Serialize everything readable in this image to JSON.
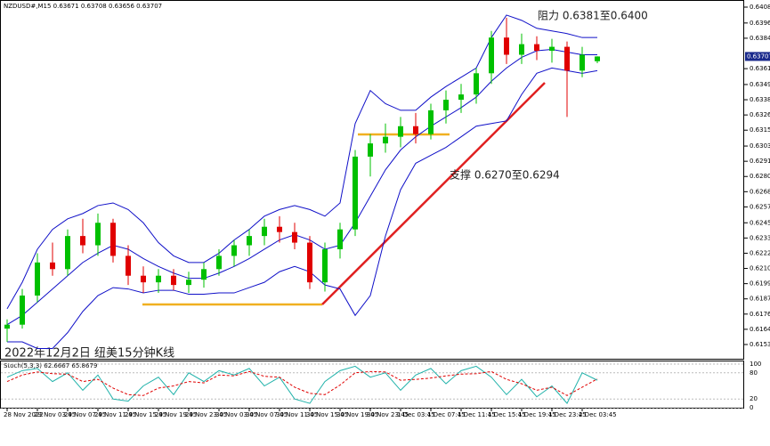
{
  "chart_data": [
    {
      "type": "candlestick",
      "title": "NZDUSD#,M15 0.63671 0.63708 0.63656 0.63707",
      "categories": [
        "28 Nov 2022",
        null,
        "29 Nov 03:45",
        null,
        "29 Nov 07:45",
        null,
        "29 Nov 11:45",
        null,
        "29 Nov 15:45",
        null,
        "29 Nov 19:45",
        null,
        "29 Nov 23:45",
        null,
        "30 Nov 03:45",
        null,
        "30 Nov 07:45",
        null,
        "30 Nov 11:45",
        null,
        "30 Nov 15:45",
        null,
        "30 Nov 19:45",
        null,
        "30 Nov 23:45",
        null,
        "1 Dec 03:45",
        null,
        "1 Dec 07:45",
        null,
        "1 Dec 11:45",
        null,
        "1 Dec 15:45",
        null,
        "1 Dec 19:45",
        null,
        "1 Dec 23:45",
        null,
        "2 Dec 03:45",
        null
      ],
      "open": [
        0.6165,
        0.6168,
        0.619,
        0.6215,
        0.621,
        0.6235,
        0.6228,
        0.6245,
        0.622,
        0.6205,
        0.62,
        0.6205,
        0.6198,
        0.6202,
        0.621,
        0.622,
        0.6228,
        0.6235,
        0.6242,
        0.6238,
        0.623,
        0.62,
        0.6225,
        0.624,
        0.6295,
        0.6305,
        0.631,
        0.6318,
        0.6312,
        0.633,
        0.6338,
        0.6342,
        0.6358,
        0.6385,
        0.6372,
        0.638,
        0.6375,
        0.6378,
        0.636,
        0.63671
      ],
      "high": [
        0.6172,
        0.6195,
        0.6222,
        0.623,
        0.624,
        0.6248,
        0.6252,
        0.6248,
        0.6228,
        0.6212,
        0.621,
        0.621,
        0.6208,
        0.6215,
        0.6225,
        0.6232,
        0.624,
        0.6248,
        0.625,
        0.6245,
        0.6235,
        0.623,
        0.6245,
        0.63,
        0.6312,
        0.632,
        0.6325,
        0.6328,
        0.6335,
        0.6345,
        0.635,
        0.6362,
        0.639,
        0.64,
        0.6388,
        0.6386,
        0.6384,
        0.6382,
        0.6378,
        0.63708
      ],
      "low": [
        0.6155,
        0.6165,
        0.6185,
        0.6205,
        0.6205,
        0.6222,
        0.622,
        0.6215,
        0.6198,
        0.6192,
        0.6192,
        0.6194,
        0.6192,
        0.6196,
        0.6205,
        0.6212,
        0.622,
        0.6228,
        0.623,
        0.6225,
        0.6195,
        0.6193,
        0.6218,
        0.6235,
        0.628,
        0.6298,
        0.6302,
        0.6305,
        0.6308,
        0.632,
        0.6328,
        0.6335,
        0.635,
        0.6365,
        0.6365,
        0.6368,
        0.6366,
        0.6325,
        0.6355,
        0.63656
      ],
      "close": [
        0.6168,
        0.619,
        0.6215,
        0.621,
        0.6235,
        0.6228,
        0.6245,
        0.622,
        0.6205,
        0.62,
        0.6205,
        0.6198,
        0.6202,
        0.621,
        0.622,
        0.6228,
        0.6235,
        0.6242,
        0.6238,
        0.623,
        0.62,
        0.6225,
        0.624,
        0.6295,
        0.6305,
        0.631,
        0.6318,
        0.6312,
        0.633,
        0.6338,
        0.6342,
        0.6358,
        0.6385,
        0.6372,
        0.638,
        0.6375,
        0.6378,
        0.636,
        0.6372,
        0.63707
      ],
      "up_color": "#00c000",
      "down_color": "#e00000",
      "bands": {
        "color": "#1010c8",
        "upper": [
          0.618,
          0.62,
          0.6225,
          0.624,
          0.6248,
          0.6252,
          0.6258,
          0.626,
          0.6255,
          0.6245,
          0.623,
          0.622,
          0.6215,
          0.6215,
          0.6222,
          0.6232,
          0.624,
          0.625,
          0.6255,
          0.6258,
          0.6255,
          0.625,
          0.626,
          0.632,
          0.6345,
          0.6335,
          0.633,
          0.633,
          0.634,
          0.6348,
          0.6355,
          0.6362,
          0.6385,
          0.6402,
          0.6398,
          0.6392,
          0.639,
          0.6388,
          0.6385,
          0.6385
        ],
        "middle": [
          0.6168,
          0.6175,
          0.6185,
          0.6195,
          0.6205,
          0.6215,
          0.6222,
          0.6228,
          0.6225,
          0.6218,
          0.6212,
          0.6207,
          0.6203,
          0.6203,
          0.6207,
          0.6212,
          0.6218,
          0.6225,
          0.6232,
          0.6236,
          0.6232,
          0.6225,
          0.6228,
          0.6245,
          0.6265,
          0.6285,
          0.63,
          0.631,
          0.6318,
          0.6325,
          0.6332,
          0.634,
          0.6352,
          0.6362,
          0.637,
          0.6375,
          0.6376,
          0.6374,
          0.6372,
          0.6372
        ],
        "lower": [
          0.6155,
          0.6155,
          0.615,
          0.615,
          0.6162,
          0.6178,
          0.619,
          0.6196,
          0.6195,
          0.6192,
          0.6194,
          0.6194,
          0.6191,
          0.6191,
          0.6192,
          0.6192,
          0.6196,
          0.62,
          0.6208,
          0.6212,
          0.6208,
          0.6198,
          0.6195,
          0.6175,
          0.619,
          0.6235,
          0.627,
          0.629,
          0.6296,
          0.6302,
          0.631,
          0.6318,
          0.632,
          0.6322,
          0.6342,
          0.6358,
          0.6362,
          0.636,
          0.6358,
          0.636
        ]
      },
      "ylim": [
        0.6153,
        0.6408
      ],
      "yticks": [
        {
          "value": 0.6408,
          "label": "0.64080"
        },
        {
          "value": 0.6396,
          "label": "0.63960"
        },
        {
          "value": 0.63845,
          "label": "0.63845"
        },
        {
          "value": 0.63615,
          "label": "0.63615"
        },
        {
          "value": 0.63495,
          "label": "0.63495"
        },
        {
          "value": 0.6338,
          "label": "0.63380"
        },
        {
          "value": 0.63265,
          "label": "0.63265"
        },
        {
          "value": 0.6315,
          "label": "0.63150"
        },
        {
          "value": 0.6303,
          "label": "0.63030"
        },
        {
          "value": 0.62915,
          "label": "0.62915"
        },
        {
          "value": 0.628,
          "label": "0.62800"
        },
        {
          "value": 0.62685,
          "label": "0.62685"
        },
        {
          "value": 0.6257,
          "label": "0.62570"
        },
        {
          "value": 0.6245,
          "label": "0.62450"
        },
        {
          "value": 0.62335,
          "label": "0.62335"
        },
        {
          "value": 0.6222,
          "label": "0.62220"
        },
        {
          "value": 0.62105,
          "label": "0.62105"
        },
        {
          "value": 0.6199,
          "label": "0.61990"
        },
        {
          "value": 0.61875,
          "label": "0.61875"
        },
        {
          "value": 0.6176,
          "label": "0.61760"
        },
        {
          "value": 0.61645,
          "label": "0.61645"
        },
        {
          "value": 0.6153,
          "label": "0.61530"
        }
      ],
      "last_price": {
        "value": 0.63707,
        "label": "0.63707"
      },
      "annotations": [
        "阻力 0.6381至0.6400",
        "支撑 0.6270至0.6294",
        "2022年12月2日 纽美15分钟K线"
      ]
    },
    {
      "type": "line",
      "title": "Stoch(5,3,3) 62.6667 65.8679",
      "ylim": [
        0,
        100
      ],
      "yticks": [
        0,
        20,
        80,
        100
      ],
      "series": [
        {
          "color": "#20b2aa",
          "values": [
            70,
            85,
            90,
            60,
            80,
            40,
            75,
            20,
            15,
            50,
            70,
            30,
            80,
            60,
            85,
            75,
            90,
            50,
            70,
            20,
            10,
            60,
            85,
            95,
            70,
            80,
            40,
            75,
            90,
            55,
            85,
            95,
            70,
            30,
            65,
            25,
            50,
            10,
            80,
            63
          ]
        },
        {
          "color": "#e00000",
          "dashed": true,
          "values": [
            60,
            75,
            82,
            78,
            77,
            60,
            65,
            45,
            30,
            28,
            45,
            50,
            60,
            57,
            75,
            73,
            83,
            72,
            70,
            47,
            33,
            30,
            52,
            80,
            83,
            82,
            63,
            65,
            68,
            73,
            77,
            78,
            83,
            65,
            55,
            40,
            47,
            28,
            47,
            66
          ]
        }
      ]
    }
  ]
}
